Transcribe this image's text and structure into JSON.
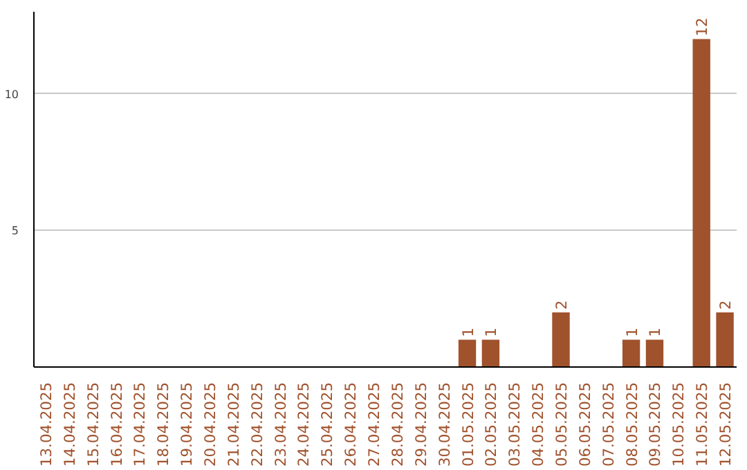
{
  "chart_data": {
    "type": "bar",
    "categories": [
      "13.04.2025",
      "14.04.2025",
      "15.04.2025",
      "16.04.2025",
      "17.04.2025",
      "18.04.2025",
      "19.04.2025",
      "20.04.2025",
      "21.04.2025",
      "22.04.2025",
      "23.04.2025",
      "24.04.2025",
      "25.04.2025",
      "26.04.2025",
      "27.04.2025",
      "28.04.2025",
      "29.04.2025",
      "30.04.2025",
      "01.05.2025",
      "02.05.2025",
      "03.05.2025",
      "04.05.2025",
      "05.05.2025",
      "06.05.2025",
      "07.05.2025",
      "08.05.2025",
      "09.05.2025",
      "10.05.2025",
      "11.05.2025",
      "12.05.2025"
    ],
    "values": [
      0,
      0,
      0,
      0,
      0,
      0,
      0,
      0,
      0,
      0,
      0,
      0,
      0,
      0,
      0,
      0,
      0,
      0,
      1,
      1,
      0,
      0,
      2,
      0,
      0,
      1,
      1,
      0,
      12,
      2
    ],
    "value_labels": [
      null,
      null,
      null,
      null,
      null,
      null,
      null,
      null,
      null,
      null,
      null,
      null,
      null,
      null,
      null,
      null,
      null,
      null,
      "1",
      "1",
      null,
      null,
      "2",
      null,
      null,
      "1",
      "1",
      null,
      "12",
      "2"
    ],
    "color": "#a0522d",
    "ylim": [
      0,
      13
    ],
    "yticks": [
      5,
      10
    ],
    "grid": "y"
  }
}
